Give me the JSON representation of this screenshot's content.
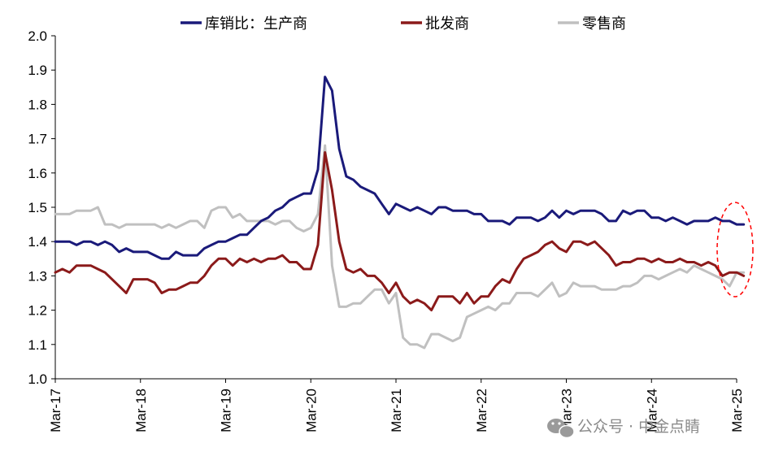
{
  "chart_data": {
    "type": "line",
    "title": "",
    "xlabel": "",
    "ylabel": "",
    "ylim": [
      1.0,
      2.0
    ],
    "y_ticks": [
      "1.0",
      "1.1",
      "1.2",
      "1.3",
      "1.4",
      "1.5",
      "1.6",
      "1.7",
      "1.8",
      "1.9",
      "2.0"
    ],
    "x_ticks": [
      "Mar-17",
      "Mar-18",
      "Mar-19",
      "Mar-20",
      "Mar-21",
      "Mar-22",
      "Mar-23",
      "Mar-24",
      "Mar-25"
    ],
    "x_start": "Mar-17",
    "legend_position": "top",
    "series": [
      {
        "name": "库销比：生产商",
        "color": "#1a1a7a",
        "values": [
          1.4,
          1.4,
          1.4,
          1.39,
          1.4,
          1.4,
          1.39,
          1.4,
          1.39,
          1.37,
          1.38,
          1.37,
          1.37,
          1.37,
          1.36,
          1.35,
          1.35,
          1.37,
          1.36,
          1.36,
          1.36,
          1.38,
          1.39,
          1.4,
          1.4,
          1.41,
          1.42,
          1.42,
          1.44,
          1.46,
          1.47,
          1.49,
          1.5,
          1.52,
          1.53,
          1.54,
          1.54,
          1.61,
          1.88,
          1.84,
          1.67,
          1.59,
          1.58,
          1.56,
          1.55,
          1.54,
          1.51,
          1.48,
          1.51,
          1.5,
          1.49,
          1.5,
          1.49,
          1.48,
          1.5,
          1.5,
          1.49,
          1.49,
          1.49,
          1.48,
          1.48,
          1.46,
          1.46,
          1.46,
          1.45,
          1.47,
          1.47,
          1.47,
          1.46,
          1.47,
          1.49,
          1.47,
          1.49,
          1.48,
          1.49,
          1.49,
          1.49,
          1.48,
          1.46,
          1.46,
          1.49,
          1.48,
          1.49,
          1.49,
          1.47,
          1.47,
          1.46,
          1.47,
          1.46,
          1.45,
          1.46,
          1.46,
          1.46,
          1.47,
          1.46,
          1.46,
          1.45,
          1.45
        ]
      },
      {
        "name": "批发商",
        "color": "#8b1a1a",
        "values": [
          1.31,
          1.32,
          1.31,
          1.33,
          1.33,
          1.33,
          1.32,
          1.31,
          1.29,
          1.27,
          1.25,
          1.29,
          1.29,
          1.29,
          1.28,
          1.25,
          1.26,
          1.26,
          1.27,
          1.28,
          1.28,
          1.3,
          1.33,
          1.35,
          1.35,
          1.33,
          1.35,
          1.34,
          1.35,
          1.34,
          1.35,
          1.35,
          1.36,
          1.34,
          1.34,
          1.32,
          1.32,
          1.39,
          1.66,
          1.55,
          1.4,
          1.32,
          1.31,
          1.32,
          1.3,
          1.3,
          1.28,
          1.25,
          1.28,
          1.24,
          1.22,
          1.23,
          1.22,
          1.2,
          1.24,
          1.24,
          1.24,
          1.22,
          1.25,
          1.22,
          1.24,
          1.24,
          1.27,
          1.29,
          1.28,
          1.32,
          1.35,
          1.36,
          1.37,
          1.39,
          1.4,
          1.38,
          1.37,
          1.4,
          1.4,
          1.39,
          1.4,
          1.38,
          1.36,
          1.33,
          1.34,
          1.34,
          1.35,
          1.35,
          1.34,
          1.35,
          1.34,
          1.34,
          1.35,
          1.34,
          1.34,
          1.33,
          1.34,
          1.33,
          1.3,
          1.31,
          1.31,
          1.3
        ]
      },
      {
        "name": "零售商",
        "color": "#c0c0c0",
        "values": [
          1.48,
          1.48,
          1.48,
          1.49,
          1.49,
          1.49,
          1.5,
          1.45,
          1.45,
          1.44,
          1.45,
          1.45,
          1.45,
          1.45,
          1.45,
          1.44,
          1.45,
          1.44,
          1.45,
          1.46,
          1.46,
          1.44,
          1.49,
          1.5,
          1.5,
          1.47,
          1.48,
          1.46,
          1.46,
          1.46,
          1.46,
          1.45,
          1.46,
          1.46,
          1.44,
          1.43,
          1.44,
          1.48,
          1.68,
          1.33,
          1.21,
          1.21,
          1.22,
          1.22,
          1.24,
          1.26,
          1.26,
          1.22,
          1.25,
          1.12,
          1.1,
          1.1,
          1.09,
          1.13,
          1.13,
          1.12,
          1.11,
          1.12,
          1.18,
          1.19,
          1.2,
          1.21,
          1.2,
          1.22,
          1.22,
          1.25,
          1.25,
          1.25,
          1.24,
          1.26,
          1.28,
          1.24,
          1.25,
          1.28,
          1.27,
          1.27,
          1.27,
          1.26,
          1.26,
          1.26,
          1.27,
          1.27,
          1.28,
          1.3,
          1.3,
          1.29,
          1.3,
          1.31,
          1.32,
          1.31,
          1.33,
          1.32,
          1.31,
          1.3,
          1.29,
          1.27,
          1.31,
          1.31
        ]
      }
    ]
  },
  "watermark": {
    "text": "公众号 · 中金点睛"
  }
}
